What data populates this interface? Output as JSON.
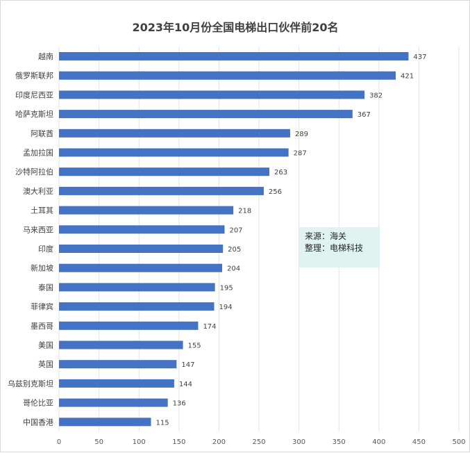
{
  "chart_data": {
    "type": "bar",
    "orientation": "horizontal",
    "title": "2023年10月份全国电梯出口伙伴前20名",
    "categories": [
      "越南",
      "俄罗斯联邦",
      "印度尼西亚",
      "哈萨克斯坦",
      "阿联酋",
      "孟加拉国",
      "沙特阿拉伯",
      "澳大利亚",
      "土耳其",
      "马来西亚",
      "印度",
      "新加坡",
      "泰国",
      "菲律宾",
      "墨西哥",
      "美国",
      "英国",
      "乌兹别克斯坦",
      "哥伦比亚",
      "中国香港"
    ],
    "values": [
      437,
      421,
      382,
      367,
      289,
      287,
      263,
      256,
      218,
      207,
      205,
      204,
      195,
      194,
      174,
      155,
      147,
      144,
      136,
      115
    ],
    "xlim": [
      0,
      500
    ],
    "xticks": [
      0,
      50,
      100,
      150,
      200,
      250,
      300,
      350,
      400,
      450,
      500
    ],
    "grid": true,
    "bar_color": "#4472c4",
    "annotation": {
      "line1": "来源：海关",
      "line2": "整理：电梯科技",
      "background": "#dff3f1"
    }
  }
}
